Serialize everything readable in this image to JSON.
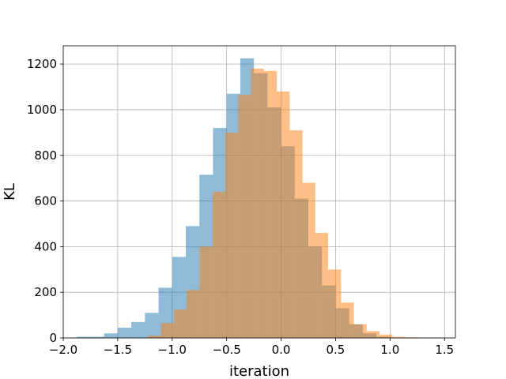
{
  "chart_data": {
    "type": "bar",
    "title": "",
    "xlabel": "iteration",
    "ylabel": "KL",
    "xlim": [
      -2.0,
      1.6
    ],
    "ylim": [
      0,
      1280
    ],
    "grid": true,
    "legend": "none",
    "xticks": [
      -2.0,
      -1.5,
      -1.0,
      -0.5,
      0.0,
      0.5,
      1.0,
      1.5
    ],
    "xtick_labels": [
      "−2.0",
      "−1.5",
      "−1.0",
      "−0.5",
      "0.0",
      "0.5",
      "1.0",
      "1.5"
    ],
    "yticks": [
      0,
      200,
      400,
      600,
      800,
      1000,
      1200
    ],
    "ytick_labels": [
      "0",
      "200",
      "400",
      "600",
      "800",
      "1000",
      "1200"
    ],
    "series": [
      {
        "color": "#1f77b4",
        "opacity": 0.5,
        "bin_width": 0.125,
        "bins": [
          {
            "x0": -1.875,
            "value": 5
          },
          {
            "x0": -1.75,
            "value": 5
          },
          {
            "x0": -1.625,
            "value": 20
          },
          {
            "x0": -1.5,
            "value": 45
          },
          {
            "x0": -1.375,
            "value": 70
          },
          {
            "x0": -1.25,
            "value": 110
          },
          {
            "x0": -1.125,
            "value": 220
          },
          {
            "x0": -1.0,
            "value": 355
          },
          {
            "x0": -0.875,
            "value": 490
          },
          {
            "x0": -0.75,
            "value": 715
          },
          {
            "x0": -0.625,
            "value": 920
          },
          {
            "x0": -0.5,
            "value": 1070
          },
          {
            "x0": -0.375,
            "value": 1225
          },
          {
            "x0": -0.25,
            "value": 1160
          },
          {
            "x0": -0.125,
            "value": 1010
          },
          {
            "x0": 0.0,
            "value": 840
          },
          {
            "x0": 0.125,
            "value": 610
          },
          {
            "x0": 0.25,
            "value": 400
          },
          {
            "x0": 0.375,
            "value": 230
          },
          {
            "x0": 0.5,
            "value": 130
          },
          {
            "x0": 0.625,
            "value": 60
          },
          {
            "x0": 0.75,
            "value": 20
          },
          {
            "x0": 0.875,
            "value": 5
          }
        ]
      },
      {
        "color": "#ff7f0e",
        "opacity": 0.5,
        "bin_width": 0.118,
        "bins": [
          {
            "x0": -1.22,
            "value": 10
          },
          {
            "x0": -1.102,
            "value": 65
          },
          {
            "x0": -0.984,
            "value": 125
          },
          {
            "x0": -0.866,
            "value": 210
          },
          {
            "x0": -0.748,
            "value": 400
          },
          {
            "x0": -0.63,
            "value": 640
          },
          {
            "x0": -0.512,
            "value": 900
          },
          {
            "x0": -0.394,
            "value": 1065
          },
          {
            "x0": -0.276,
            "value": 1180
          },
          {
            "x0": -0.158,
            "value": 1170
          },
          {
            "x0": -0.04,
            "value": 1080
          },
          {
            "x0": 0.078,
            "value": 910
          },
          {
            "x0": 0.196,
            "value": 680
          },
          {
            "x0": 0.314,
            "value": 460
          },
          {
            "x0": 0.432,
            "value": 300
          },
          {
            "x0": 0.55,
            "value": 155
          },
          {
            "x0": 0.668,
            "value": 60
          },
          {
            "x0": 0.786,
            "value": 30
          },
          {
            "x0": 0.904,
            "value": 15
          },
          {
            "x0": 1.022,
            "value": 5
          },
          {
            "x0": 1.14,
            "value": 3
          },
          {
            "x0": 1.258,
            "value": 2
          },
          {
            "x0": 1.376,
            "value": 1
          }
        ]
      }
    ]
  }
}
